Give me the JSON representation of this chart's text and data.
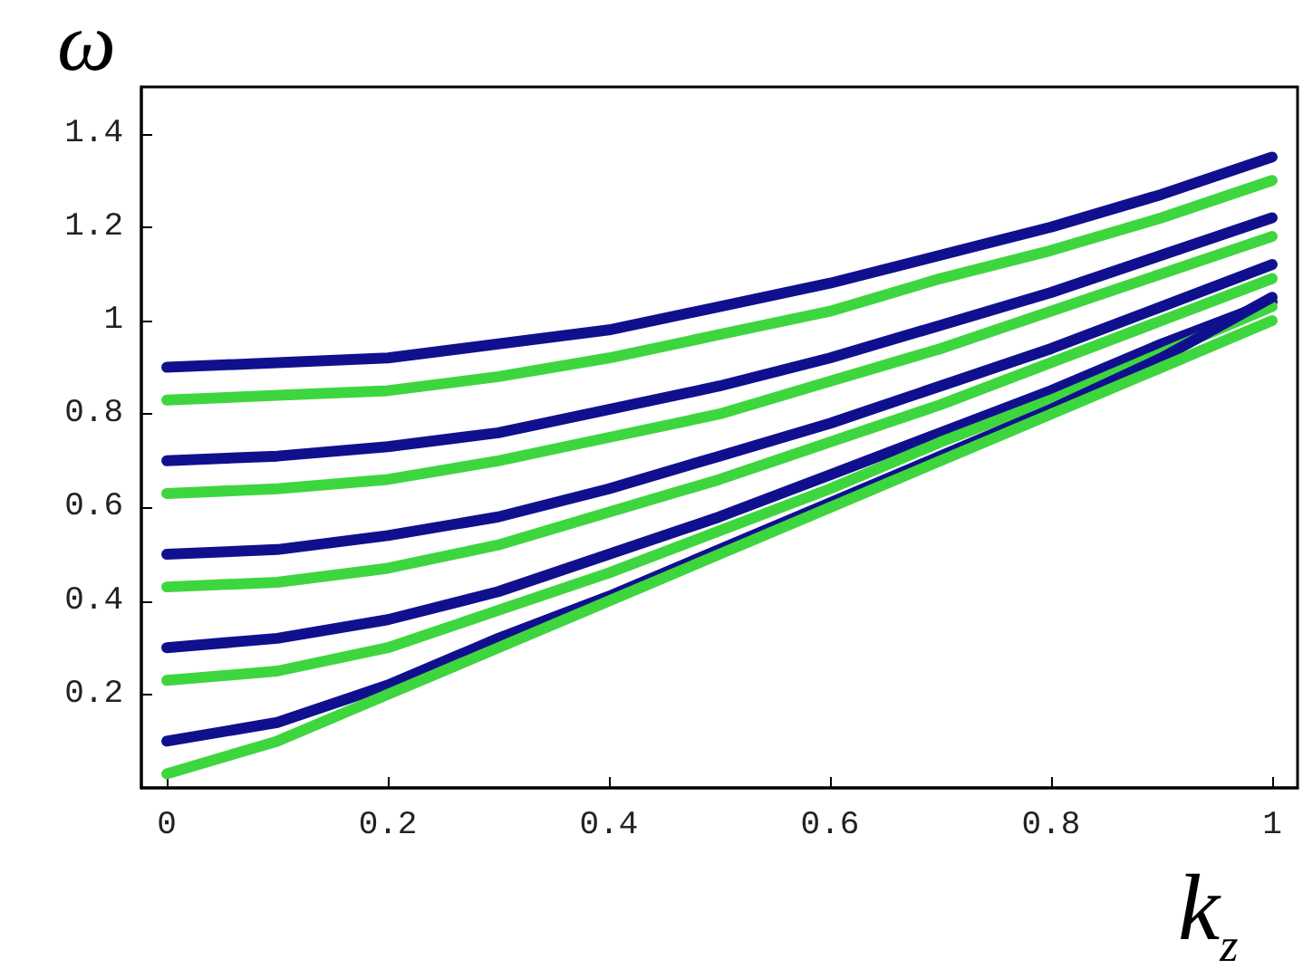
{
  "chart_data": {
    "type": "line",
    "xlabel": "k$_{z}$",
    "ylabel": "ω",
    "x": [
      0,
      0.1,
      0.2,
      0.3,
      0.4,
      0.5,
      0.6,
      0.7,
      0.8,
      0.9,
      1
    ],
    "series": [
      {
        "color": "#10108f",
        "values": [
          0.9,
          0.91,
          0.92,
          0.95,
          0.98,
          1.03,
          1.08,
          1.14,
          1.2,
          1.27,
          1.35
        ]
      },
      {
        "color": "#3ed63e",
        "values": [
          0.83,
          0.84,
          0.85,
          0.88,
          0.92,
          0.97,
          1.02,
          1.09,
          1.15,
          1.22,
          1.3
        ]
      },
      {
        "color": "#10108f",
        "values": [
          0.7,
          0.71,
          0.73,
          0.76,
          0.81,
          0.86,
          0.92,
          0.99,
          1.06,
          1.14,
          1.22
        ]
      },
      {
        "color": "#3ed63e",
        "values": [
          0.63,
          0.64,
          0.66,
          0.7,
          0.75,
          0.8,
          0.87,
          0.94,
          1.02,
          1.1,
          1.18
        ]
      },
      {
        "color": "#10108f",
        "values": [
          0.5,
          0.51,
          0.54,
          0.58,
          0.64,
          0.71,
          0.78,
          0.86,
          0.94,
          1.03,
          1.12
        ]
      },
      {
        "color": "#3ed63e",
        "values": [
          0.43,
          0.44,
          0.47,
          0.52,
          0.59,
          0.66,
          0.74,
          0.82,
          0.91,
          1.0,
          1.09
        ]
      },
      {
        "color": "#10108f",
        "values": [
          0.3,
          0.32,
          0.36,
          0.42,
          0.5,
          0.58,
          0.67,
          0.76,
          0.85,
          0.95,
          1.04
        ]
      },
      {
        "color": "#3ed63e",
        "values": [
          0.23,
          0.25,
          0.3,
          0.38,
          0.46,
          0.55,
          0.64,
          0.74,
          0.83,
          0.93,
          1.03
        ]
      },
      {
        "color": "#10108f",
        "values": [
          0.1,
          0.14,
          0.22,
          0.32,
          0.41,
          0.51,
          0.61,
          0.71,
          0.81,
          0.92,
          1.05
        ]
      },
      {
        "color": "#3ed63e",
        "values": [
          0.03,
          0.1,
          0.2,
          0.3,
          0.4,
          0.5,
          0.6,
          0.7,
          0.8,
          0.9,
          1.0
        ]
      }
    ],
    "xlim": [
      -0.023,
      1.023
    ],
    "ylim": [
      0,
      1.5
    ],
    "xticks": [
      0,
      0.2,
      0.4,
      0.6,
      0.8,
      1
    ],
    "yticks": [
      0.2,
      0.4,
      0.6,
      0.8,
      1,
      1.2,
      1.4
    ],
    "grid": false,
    "marker": "none",
    "line_style": "solid"
  }
}
